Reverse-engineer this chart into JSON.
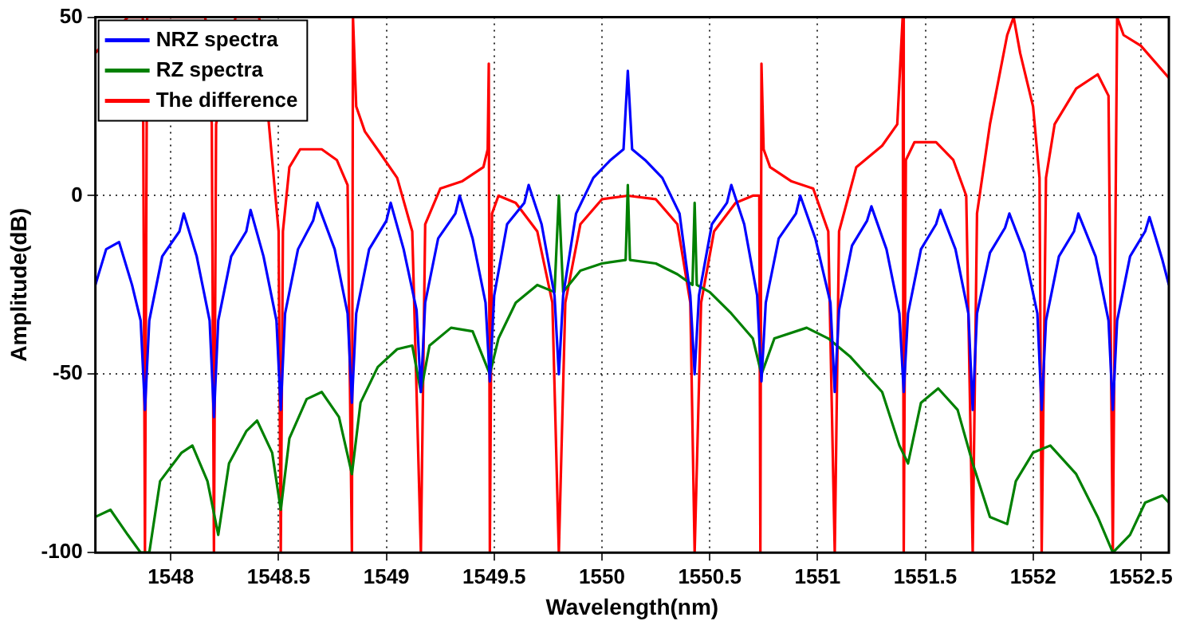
{
  "chart_data": {
    "type": "line",
    "xlabel": "Wavelength(nm)",
    "ylabel": "Amplitude(dB)",
    "xlim": [
      1547.65,
      1552.63
    ],
    "ylim": [
      -100,
      50
    ],
    "xticks": [
      1548,
      1548.5,
      1549,
      1549.5,
      1550,
      1550.5,
      1551,
      1551.5,
      1552,
      1552.5
    ],
    "yticks": [
      -100,
      -50,
      0,
      50
    ],
    "grid": true,
    "legend": "top left",
    "marker": "none",
    "line_style": "solid",
    "series": [
      {
        "name": "NRZ spectra",
        "color": "#0000ff",
        "x": [
          1547.65,
          1547.7,
          1547.76,
          1547.82,
          1547.86,
          1547.88,
          1547.9,
          1547.96,
          1548.04,
          1548.06,
          1548.12,
          1548.18,
          1548.2,
          1548.22,
          1548.28,
          1548.35,
          1548.37,
          1548.43,
          1548.49,
          1548.51,
          1548.53,
          1548.59,
          1548.66,
          1548.68,
          1548.76,
          1548.82,
          1548.84,
          1548.86,
          1548.92,
          1549,
          1549.02,
          1549.08,
          1549.14,
          1549.16,
          1549.18,
          1549.24,
          1549.32,
          1549.34,
          1549.4,
          1549.46,
          1549.48,
          1549.5,
          1549.56,
          1549.64,
          1549.66,
          1549.72,
          1549.78,
          1549.8,
          1549.82,
          1549.88,
          1549.96,
          1550.04,
          1550.1,
          1550.12,
          1550.14,
          1550.2,
          1550.28,
          1550.36,
          1550.41,
          1550.43,
          1550.45,
          1550.51,
          1550.58,
          1550.6,
          1550.66,
          1550.72,
          1550.74,
          1550.76,
          1550.82,
          1550.9,
          1550.92,
          1550.99,
          1551.06,
          1551.08,
          1551.1,
          1551.16,
          1551.23,
          1551.25,
          1551.32,
          1551.38,
          1551.4,
          1551.42,
          1551.48,
          1551.55,
          1551.57,
          1551.64,
          1551.7,
          1551.72,
          1551.74,
          1551.8,
          1551.87,
          1551.89,
          1551.96,
          1552.02,
          1552.04,
          1552.06,
          1552.12,
          1552.19,
          1552.21,
          1552.29,
          1552.35,
          1552.37,
          1552.39,
          1552.45,
          1552.52,
          1552.54,
          1552.6,
          1552.63
        ],
        "values": [
          -25,
          -15,
          -13,
          -25,
          -35,
          -60,
          -35,
          -17,
          -10,
          -5,
          -17,
          -35,
          -62,
          -35,
          -17,
          -10,
          -4,
          -17,
          -35,
          -60,
          -33,
          -15,
          -7,
          -2,
          -15,
          -33,
          -58,
          -33,
          -15,
          -7,
          -2,
          -15,
          -32,
          -55,
          -30,
          -12,
          -5,
          0,
          -12,
          -30,
          -52,
          -28,
          -8,
          -2,
          3,
          -8,
          -28,
          -50,
          -28,
          -5,
          5,
          10,
          13,
          35,
          13,
          10,
          5,
          -5,
          -28,
          -50,
          -28,
          -8,
          -2,
          3,
          -8,
          -28,
          -52,
          -30,
          -12,
          -5,
          0,
          -12,
          -30,
          -55,
          -32,
          -14,
          -7,
          -3,
          -15,
          -33,
          -55,
          -33,
          -15,
          -8,
          -4,
          -15,
          -33,
          -60,
          -33,
          -16,
          -9,
          -5,
          -16,
          -33,
          -60,
          -35,
          -17,
          -10,
          -5,
          -17,
          -35,
          -60,
          -35,
          -17,
          -10,
          -6,
          -18,
          -25
        ]
      },
      {
        "name": "RZ spectra",
        "color": "#008000",
        "x": [
          1547.65,
          1547.72,
          1547.8,
          1547.86,
          1547.9,
          1547.95,
          1548.05,
          1548.1,
          1548.17,
          1548.22,
          1548.27,
          1548.35,
          1548.4,
          1548.47,
          1548.51,
          1548.55,
          1548.63,
          1548.7,
          1548.78,
          1548.84,
          1548.88,
          1548.96,
          1549.05,
          1549.12,
          1549.16,
          1549.2,
          1549.3,
          1549.4,
          1549.48,
          1549.52,
          1549.6,
          1549.7,
          1549.78,
          1549.8,
          1549.82,
          1549.9,
          1550,
          1550.11,
          1550.12,
          1550.13,
          1550.25,
          1550.35,
          1550.42,
          1550.43,
          1550.44,
          1550.5,
          1550.6,
          1550.7,
          1550.74,
          1550.8,
          1550.95,
          1551.05,
          1551.15,
          1551.3,
          1551.38,
          1551.42,
          1551.48,
          1551.56,
          1551.65,
          1551.72,
          1551.8,
          1551.88,
          1551.92,
          1552,
          1552.08,
          1552.2,
          1552.3,
          1552.37,
          1552.45,
          1552.52,
          1552.6,
          1552.63
        ],
        "values": [
          -90,
          -88,
          -95,
          -100,
          -100,
          -80,
          -72,
          -70,
          -80,
          -95,
          -75,
          -66,
          -63,
          -72,
          -88,
          -68,
          -57,
          -55,
          -62,
          -78,
          -58,
          -48,
          -43,
          -42,
          -55,
          -42,
          -37,
          -38,
          -50,
          -40,
          -30,
          -25,
          -27,
          0,
          -27,
          -21,
          -19,
          -18,
          3,
          -18,
          -19,
          -22,
          -25,
          -2,
          -25,
          -27,
          -33,
          -40,
          -50,
          -40,
          -37,
          -40,
          -45,
          -55,
          -70,
          -75,
          -58,
          -54,
          -60,
          -75,
          -90,
          -92,
          -80,
          -72,
          -70,
          -78,
          -90,
          -100,
          -95,
          -86,
          -84,
          -86
        ]
      },
      {
        "name": "The difference",
        "color": "#ff0000",
        "x": [
          1547.65,
          1547.72,
          1547.8,
          1547.87,
          1547.88,
          1547.89,
          1548.16,
          1548.19,
          1548.2,
          1548.21,
          1548.24,
          1548.3,
          1548.41,
          1548.45,
          1548.5,
          1548.51,
          1548.52,
          1548.55,
          1548.6,
          1548.7,
          1548.77,
          1548.82,
          1548.84,
          1548.845,
          1548.86,
          1548.9,
          1548.97,
          1549.05,
          1549.12,
          1549.16,
          1549.18,
          1549.25,
          1549.35,
          1549.45,
          1549.47,
          1549.475,
          1549.48,
          1549.49,
          1549.52,
          1549.6,
          1549.7,
          1549.77,
          1549.8,
          1549.83,
          1549.9,
          1550,
          1550.12,
          1550.25,
          1550.35,
          1550.41,
          1550.43,
          1550.46,
          1550.52,
          1550.62,
          1550.7,
          1550.73,
          1550.735,
          1550.74,
          1550.75,
          1550.78,
          1550.88,
          1550.98,
          1551.05,
          1551.08,
          1551.1,
          1551.18,
          1551.3,
          1551.37,
          1551.395,
          1551.4,
          1551.41,
          1551.45,
          1551.55,
          1551.63,
          1551.69,
          1551.72,
          1551.74,
          1551.8,
          1551.88,
          1551.91,
          1551.94,
          1552,
          1552.03,
          1552.04,
          1552.06,
          1552.1,
          1552.2,
          1552.3,
          1552.35,
          1552.37,
          1552.39,
          1552.42,
          1552.5,
          1552.63
        ],
        "values": [
          40,
          null,
          50,
          50,
          -100,
          50,
          50,
          20,
          -100,
          20,
          null,
          50,
          50,
          null,
          -10,
          -100,
          -10,
          8,
          13,
          13,
          10,
          3,
          -100,
          50,
          25,
          18,
          12,
          5,
          -10,
          -100,
          -8,
          2,
          4,
          8,
          13,
          37,
          -100,
          -5,
          0,
          -2,
          -10,
          -30,
          -100,
          -30,
          -8,
          -1,
          0,
          -1,
          -8,
          -30,
          -100,
          -30,
          -10,
          -2,
          0,
          0,
          -100,
          37,
          13,
          8,
          4,
          2,
          -10,
          -100,
          -10,
          8,
          14,
          20,
          50,
          -100,
          10,
          15,
          15,
          10,
          0,
          -100,
          -5,
          20,
          45,
          50,
          40,
          25,
          5,
          -100,
          5,
          20,
          30,
          34,
          28,
          -100,
          50,
          45,
          42,
          33
        ]
      }
    ]
  }
}
